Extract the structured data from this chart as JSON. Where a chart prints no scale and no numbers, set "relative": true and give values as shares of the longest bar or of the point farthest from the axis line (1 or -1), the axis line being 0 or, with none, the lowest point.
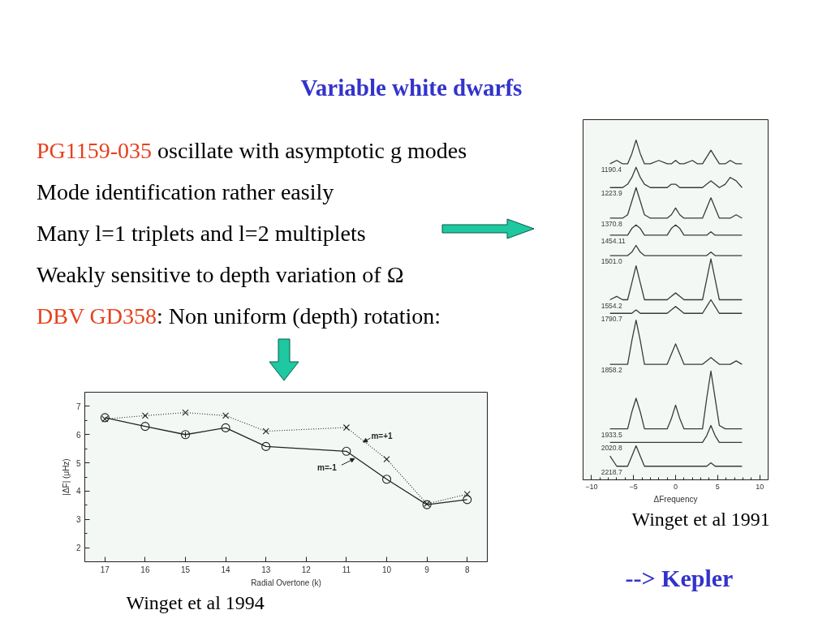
{
  "chart_data": [
    {
      "type": "other",
      "title": "Variable white dwarfs",
      "annotations": [
        "PG1159-035",
        "oscillate with asymptotic g modes",
        "Mode identification rather easily",
        "Many l=1 triplets and l=2 multiplets",
        "Weakly sensitive to depth variation of Ω",
        "DBV GD358",
        ": Non uniform (depth) rotation:"
      ]
    },
    {
      "type": "line",
      "xlabel": "Radial Overtone (k)",
      "ylabel": "|ΔF| (μHz)",
      "x": [
        17,
        16,
        15,
        14,
        13,
        11,
        10,
        9,
        8
      ],
      "xlim": [
        17.5,
        7.5
      ],
      "xticks": [
        17,
        16,
        15,
        14,
        13,
        12,
        11,
        10,
        9,
        8
      ],
      "ylim": [
        1.5,
        7.5
      ],
      "yticks": [
        2,
        3,
        4,
        5,
        6,
        7
      ],
      "series": [
        {
          "name": "m=+1",
          "color": "#222222",
          "marker": "cross",
          "line_style": "dotted",
          "values": [
            6.55,
            6.67,
            6.78,
            6.67,
            6.12,
            6.25,
            5.13,
            3.55,
            3.89
          ]
        },
        {
          "name": "m=-1",
          "color": "#222222",
          "marker": "circle",
          "line_style": "solid",
          "values": [
            6.6,
            6.29,
            6.0,
            6.24,
            5.58,
            5.41,
            4.42,
            3.52,
            3.7
          ],
          "errors": [
            null,
            null,
            0.1,
            null,
            null,
            null,
            null,
            null,
            null
          ]
        }
      ],
      "annotations": [
        "Winget et al 1994"
      ]
    },
    {
      "type": "line",
      "relative": true,
      "xlabel": "ΔFrequency",
      "xlim": [
        -11,
        11
      ],
      "xticks": [
        -10,
        -5,
        0,
        5,
        10
      ],
      "x": [
        -7.8,
        -7.0,
        -6.3,
        -5.7,
        -5.2,
        -4.7,
        -4.2,
        -3.7,
        -3.0,
        -2.0,
        -1.0,
        -0.5,
        0,
        0.5,
        1.0,
        2.0,
        2.6,
        3.2,
        3.7,
        4.2,
        4.7,
        5.2,
        5.9,
        6.5,
        7.2,
        7.9
      ],
      "series": [
        {
          "name": "1190.4",
          "color": "#3a3a3a",
          "values": [
            0.93,
            0.94,
            0.93,
            0.93,
            0.96,
            1.0,
            0.96,
            0.93,
            0.93,
            0.94,
            0.93,
            0.93,
            0.94,
            0.93,
            0.93,
            0.94,
            0.93,
            0.93,
            0.95,
            0.97,
            0.95,
            0.93,
            0.93,
            0.94,
            0.93,
            0.93
          ]
        },
        {
          "name": "1223.9",
          "color": "#3a3a3a",
          "values": [
            0.86,
            0.86,
            0.86,
            0.87,
            0.89,
            0.92,
            0.89,
            0.87,
            0.86,
            0.86,
            0.86,
            0.87,
            0.87,
            0.86,
            0.86,
            0.86,
            0.86,
            0.86,
            0.87,
            0.88,
            0.87,
            0.86,
            0.87,
            0.89,
            0.88,
            0.86
          ]
        },
        {
          "name": "1370.8",
          "color": "#3a3a3a",
          "values": [
            0.77,
            0.77,
            0.77,
            0.78,
            0.82,
            0.86,
            0.82,
            0.78,
            0.77,
            0.77,
            0.77,
            0.78,
            0.8,
            0.78,
            0.77,
            0.77,
            0.77,
            0.77,
            0.8,
            0.83,
            0.8,
            0.77,
            0.77,
            0.77,
            0.78,
            0.77
          ]
        },
        {
          "name": "1454.11",
          "color": "#3a3a3a",
          "values": [
            0.72,
            0.72,
            0.72,
            0.72,
            0.74,
            0.75,
            0.74,
            0.72,
            0.72,
            0.72,
            0.72,
            0.74,
            0.75,
            0.74,
            0.72,
            0.72,
            0.72,
            0.72,
            0.72,
            0.73,
            0.72,
            0.72,
            0.72,
            0.72,
            0.72,
            0.72
          ]
        },
        {
          "name": "1501.0",
          "color": "#3a3a3a",
          "values": [
            0.66,
            0.66,
            0.66,
            0.66,
            0.67,
            0.69,
            0.67,
            0.66,
            0.66,
            0.66,
            0.66,
            0.66,
            0.66,
            0.66,
            0.66,
            0.66,
            0.66,
            0.66,
            0.66,
            0.67,
            0.66,
            0.66,
            0.66,
            0.66,
            0.66,
            0.66
          ]
        },
        {
          "name": "1554.2",
          "color": "#3a3a3a",
          "values": [
            0.53,
            0.54,
            0.53,
            0.53,
            0.58,
            0.63,
            0.58,
            0.53,
            0.53,
            0.53,
            0.53,
            0.54,
            0.55,
            0.54,
            0.53,
            0.53,
            0.53,
            0.53,
            0.59,
            0.65,
            0.59,
            0.53,
            0.53,
            0.53,
            0.53,
            0.53
          ]
        },
        {
          "name": "1790.7",
          "color": "#3a3a3a",
          "values": [
            0.49,
            0.49,
            0.49,
            0.49,
            0.49,
            0.5,
            0.49,
            0.49,
            0.49,
            0.49,
            0.49,
            0.5,
            0.51,
            0.5,
            0.49,
            0.49,
            0.49,
            0.49,
            0.51,
            0.53,
            0.51,
            0.49,
            0.49,
            0.49,
            0.49,
            0.49
          ]
        },
        {
          "name": "1858.2",
          "color": "#3a3a3a",
          "values": [
            0.34,
            0.34,
            0.34,
            0.34,
            0.41,
            0.47,
            0.41,
            0.34,
            0.34,
            0.34,
            0.34,
            0.37,
            0.4,
            0.37,
            0.34,
            0.34,
            0.34,
            0.34,
            0.35,
            0.36,
            0.35,
            0.34,
            0.34,
            0.34,
            0.35,
            0.34
          ]
        },
        {
          "name": "1933.5",
          "color": "#3a3a3a",
          "values": [
            0.15,
            0.15,
            0.15,
            0.15,
            0.2,
            0.24,
            0.2,
            0.15,
            0.15,
            0.15,
            0.15,
            0.18,
            0.22,
            0.18,
            0.15,
            0.15,
            0.15,
            0.15,
            0.24,
            0.32,
            0.24,
            0.16,
            0.15,
            0.15,
            0.15,
            0.15
          ]
        },
        {
          "name": "2020.8",
          "color": "#3a3a3a",
          "values": [
            0.11,
            0.11,
            0.11,
            0.11,
            0.11,
            0.11,
            0.11,
            0.11,
            0.11,
            0.11,
            0.11,
            0.11,
            0.11,
            0.11,
            0.11,
            0.11,
            0.11,
            0.11,
            0.13,
            0.16,
            0.13,
            0.11,
            0.11,
            0.11,
            0.11,
            0.11
          ]
        },
        {
          "name": "2218.7",
          "color": "#3a3a3a",
          "values": [
            0.07,
            0.04,
            0.04,
            0.04,
            0.07,
            0.1,
            0.07,
            0.04,
            0.04,
            0.04,
            0.04,
            0.04,
            0.04,
            0.04,
            0.04,
            0.04,
            0.04,
            0.04,
            0.04,
            0.05,
            0.04,
            0.04,
            0.04,
            0.04,
            0.04,
            0.04
          ]
        }
      ],
      "annotations": [
        "Winget et al 1991",
        "--> Kepler"
      ]
    }
  ]
}
